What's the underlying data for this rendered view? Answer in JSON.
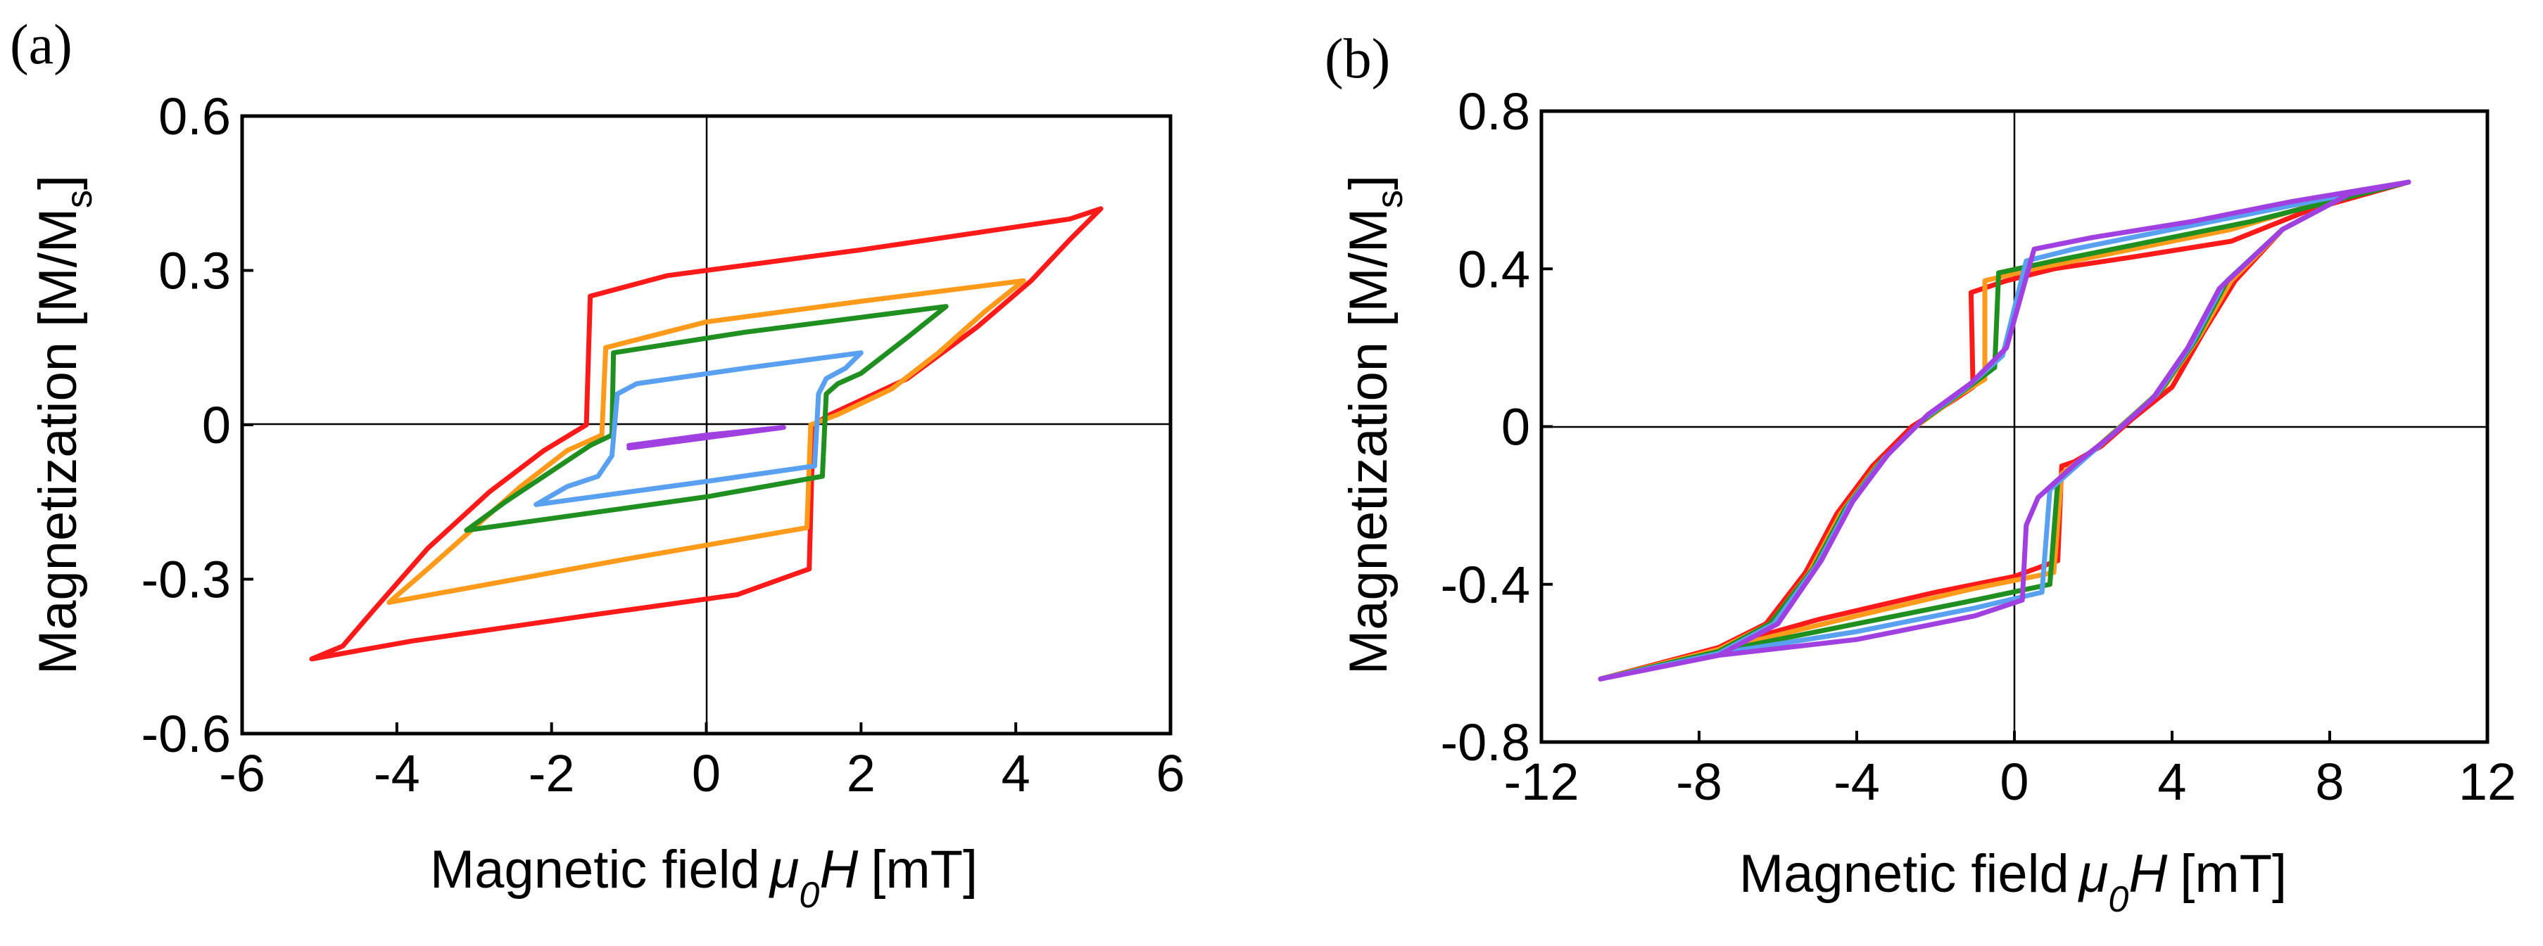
{
  "chart_data": [
    {
      "type": "line",
      "panel": "(a)",
      "xlabel": "Magnetic field",
      "xlabel_symbol": "μ",
      "xlabel_sub": "0",
      "xlabel_var": "H",
      "xlabel_unit": "[mT]",
      "ylabel": "Magnetization [M/M",
      "ylabel_sub": "s",
      "ylabel_close": "]",
      "xlim": [
        -6,
        6
      ],
      "ylim": [
        -0.6,
        0.6
      ],
      "xticks": [
        "-6",
        "-4",
        "-2",
        "0",
        "2",
        "4",
        "6"
      ],
      "yticks": [
        "0.6",
        "0.3",
        "0",
        "-0.3",
        "-0.6"
      ],
      "series": [
        {
          "color": "#ff1a1a",
          "points": [
            [
              -5.1,
              -0.455
            ],
            [
              -4.7,
              -0.43
            ],
            [
              -4.3,
              -0.36
            ],
            [
              -3.6,
              -0.24
            ],
            [
              -2.8,
              -0.13
            ],
            [
              -2.1,
              -0.05
            ],
            [
              -1.55,
              0.0
            ],
            [
              -1.5,
              0.25
            ],
            [
              -0.5,
              0.29
            ],
            [
              2.0,
              0.34
            ],
            [
              4.7,
              0.4
            ],
            [
              5.1,
              0.42
            ],
            [
              4.7,
              0.36
            ],
            [
              4.2,
              0.28
            ],
            [
              3.5,
              0.19
            ],
            [
              2.6,
              0.09
            ],
            [
              1.6,
              0.02
            ],
            [
              1.38,
              0.0
            ],
            [
              1.33,
              -0.28
            ],
            [
              0.4,
              -0.33
            ],
            [
              -1.5,
              -0.37
            ],
            [
              -3.8,
              -0.42
            ],
            [
              -5.1,
              -0.455
            ]
          ]
        },
        {
          "color": "#ff9a1a",
          "points": [
            [
              -4.1,
              -0.345
            ],
            [
              -3.6,
              -0.28
            ],
            [
              -3.0,
              -0.2
            ],
            [
              -2.4,
              -0.12
            ],
            [
              -1.8,
              -0.05
            ],
            [
              -1.35,
              -0.02
            ],
            [
              -1.3,
              0.15
            ],
            [
              0.0,
              0.2
            ],
            [
              2.0,
              0.24
            ],
            [
              4.1,
              0.28
            ],
            [
              3.6,
              0.22
            ],
            [
              3.0,
              0.14
            ],
            [
              2.4,
              0.07
            ],
            [
              1.7,
              0.02
            ],
            [
              1.35,
              0.0
            ],
            [
              1.3,
              -0.2
            ],
            [
              -1.0,
              -0.26
            ],
            [
              -4.1,
              -0.345
            ]
          ]
        },
        {
          "color": "#1f8f1f",
          "points": [
            [
              -3.1,
              -0.205
            ],
            [
              -2.6,
              -0.15
            ],
            [
              -2.0,
              -0.09
            ],
            [
              -1.5,
              -0.04
            ],
            [
              -1.22,
              -0.02
            ],
            [
              -1.2,
              0.14
            ],
            [
              0.5,
              0.18
            ],
            [
              3.1,
              0.23
            ],
            [
              2.6,
              0.17
            ],
            [
              2.0,
              0.1
            ],
            [
              1.7,
              0.08
            ],
            [
              1.55,
              0.06
            ],
            [
              1.5,
              -0.1
            ],
            [
              0.0,
              -0.14
            ],
            [
              -3.1,
              -0.205
            ]
          ]
        },
        {
          "color": "#5aa0f0",
          "points": [
            [
              -2.2,
              -0.155
            ],
            [
              -1.8,
              -0.12
            ],
            [
              -1.4,
              -0.1
            ],
            [
              -1.22,
              -0.06
            ],
            [
              -1.15,
              0.06
            ],
            [
              -0.9,
              0.08
            ],
            [
              0.5,
              0.11
            ],
            [
              2.0,
              0.14
            ],
            [
              1.8,
              0.11
            ],
            [
              1.55,
              0.09
            ],
            [
              1.45,
              0.06
            ],
            [
              1.4,
              -0.08
            ],
            [
              0.0,
              -0.11
            ],
            [
              -2.2,
              -0.155
            ]
          ]
        },
        {
          "color": "#a040e0",
          "points": [
            [
              -1.0,
              -0.045
            ],
            [
              0.0,
              -0.025
            ],
            [
              1.0,
              -0.005
            ],
            [
              0.0,
              -0.02
            ],
            [
              -1.0,
              -0.04
            ]
          ]
        }
      ]
    },
    {
      "type": "line",
      "panel": "(b)",
      "xlabel": "Magnetic field",
      "xlabel_symbol": "μ",
      "xlabel_sub": "0",
      "xlabel_var": "H",
      "xlabel_unit": "[mT]",
      "ylabel": "Magnetization [M/M",
      "ylabel_sub": "s",
      "ylabel_close": "]",
      "xlim": [
        -12,
        12
      ],
      "ylim": [
        -0.8,
        0.8
      ],
      "xticks": [
        "-12",
        "-8",
        "-4",
        "0",
        "4",
        "8",
        "12"
      ],
      "yticks": [
        "0.8",
        "0.4",
        "0",
        "-0.4",
        "-0.8"
      ],
      "series": [
        {
          "color": "#ff1a1a",
          "points": [
            [
              -10.5,
              -0.64
            ],
            [
              -7.5,
              -0.56
            ],
            [
              -6.3,
              -0.5
            ],
            [
              -5.3,
              -0.37
            ],
            [
              -4.5,
              -0.22
            ],
            [
              -3.6,
              -0.1
            ],
            [
              -2.6,
              0.0
            ],
            [
              -1.5,
              0.07
            ],
            [
              -1.05,
              0.1
            ],
            [
              -1.1,
              0.34
            ],
            [
              -0.2,
              0.37
            ],
            [
              1.0,
              0.4
            ],
            [
              3.0,
              0.43
            ],
            [
              5.5,
              0.47
            ],
            [
              7.5,
              0.55
            ],
            [
              10.0,
              0.62
            ],
            [
              8.5,
              0.59
            ],
            [
              6.8,
              0.5
            ],
            [
              5.6,
              0.37
            ],
            [
              4.8,
              0.24
            ],
            [
              4.0,
              0.1
            ],
            [
              3.0,
              0.02
            ],
            [
              2.2,
              -0.05
            ],
            [
              1.5,
              -0.09
            ],
            [
              1.2,
              -0.1
            ],
            [
              1.1,
              -0.34
            ],
            [
              0.0,
              -0.38
            ],
            [
              -2.0,
              -0.42
            ],
            [
              -5.0,
              -0.49
            ],
            [
              -7.5,
              -0.56
            ],
            [
              -10.5,
              -0.64
            ]
          ]
        },
        {
          "color": "#ff9a1a",
          "points": [
            [
              -10.5,
              -0.64
            ],
            [
              -7.5,
              -0.565
            ],
            [
              -6.2,
              -0.5
            ],
            [
              -5.2,
              -0.37
            ],
            [
              -4.4,
              -0.22
            ],
            [
              -3.5,
              -0.1
            ],
            [
              -2.5,
              0.0
            ],
            [
              -1.4,
              0.08
            ],
            [
              -0.75,
              0.12
            ],
            [
              -0.75,
              0.37
            ],
            [
              0.5,
              0.4
            ],
            [
              3.0,
              0.45
            ],
            [
              5.5,
              0.5
            ],
            [
              7.5,
              0.56
            ],
            [
              10.0,
              0.62
            ],
            [
              8.5,
              0.59
            ],
            [
              6.8,
              0.5
            ],
            [
              5.5,
              0.37
            ],
            [
              4.7,
              0.23
            ],
            [
              3.8,
              0.1
            ],
            [
              2.8,
              0.01
            ],
            [
              2.0,
              -0.06
            ],
            [
              1.2,
              -0.12
            ],
            [
              1.0,
              -0.37
            ],
            [
              -1.0,
              -0.41
            ],
            [
              -4.0,
              -0.48
            ],
            [
              -7.5,
              -0.565
            ],
            [
              -10.5,
              -0.64
            ]
          ]
        },
        {
          "color": "#1f8f1f",
          "points": [
            [
              -10.5,
              -0.64
            ],
            [
              -7.5,
              -0.57
            ],
            [
              -6.2,
              -0.5
            ],
            [
              -5.1,
              -0.36
            ],
            [
              -4.3,
              -0.21
            ],
            [
              -3.4,
              -0.09
            ],
            [
              -2.4,
              0.01
            ],
            [
              -1.3,
              0.09
            ],
            [
              -0.5,
              0.15
            ],
            [
              -0.4,
              0.39
            ],
            [
              1.0,
              0.42
            ],
            [
              3.5,
              0.47
            ],
            [
              6.0,
              0.52
            ],
            [
              8.0,
              0.57
            ],
            [
              10.0,
              0.62
            ],
            [
              8.5,
              0.59
            ],
            [
              6.8,
              0.5
            ],
            [
              5.4,
              0.37
            ],
            [
              4.6,
              0.22
            ],
            [
              3.7,
              0.09
            ],
            [
              2.7,
              0.0
            ],
            [
              1.9,
              -0.07
            ],
            [
              1.1,
              -0.14
            ],
            [
              0.9,
              -0.4
            ],
            [
              -1.0,
              -0.44
            ],
            [
              -4.0,
              -0.5
            ],
            [
              -7.5,
              -0.57
            ],
            [
              -10.5,
              -0.64
            ]
          ]
        },
        {
          "color": "#5aa0f0",
          "points": [
            [
              -10.5,
              -0.64
            ],
            [
              -7.5,
              -0.575
            ],
            [
              -6.1,
              -0.5
            ],
            [
              -5.0,
              -0.35
            ],
            [
              -4.2,
              -0.2
            ],
            [
              -3.3,
              -0.08
            ],
            [
              -2.3,
              0.02
            ],
            [
              -1.2,
              0.1
            ],
            [
              -0.3,
              0.18
            ],
            [
              0.3,
              0.42
            ],
            [
              1.5,
              0.45
            ],
            [
              4.0,
              0.5
            ],
            [
              6.5,
              0.55
            ],
            [
              8.5,
              0.59
            ],
            [
              10.0,
              0.62
            ],
            [
              8.5,
              0.59
            ],
            [
              6.8,
              0.5
            ],
            [
              5.3,
              0.36
            ],
            [
              4.5,
              0.21
            ],
            [
              3.6,
              0.08
            ],
            [
              2.6,
              -0.01
            ],
            [
              1.8,
              -0.08
            ],
            [
              0.9,
              -0.16
            ],
            [
              0.7,
              -0.42
            ],
            [
              -1.0,
              -0.46
            ],
            [
              -4.0,
              -0.52
            ],
            [
              -7.5,
              -0.575
            ],
            [
              -10.5,
              -0.64
            ]
          ]
        },
        {
          "color": "#a040e0",
          "points": [
            [
              -10.5,
              -0.64
            ],
            [
              -7.5,
              -0.58
            ],
            [
              -6.0,
              -0.5
            ],
            [
              -4.9,
              -0.34
            ],
            [
              -4.1,
              -0.19
            ],
            [
              -3.2,
              -0.07
            ],
            [
              -2.2,
              0.03
            ],
            [
              -1.1,
              0.11
            ],
            [
              -0.2,
              0.2
            ],
            [
              0.5,
              0.45
            ],
            [
              2.0,
              0.48
            ],
            [
              4.5,
              0.52
            ],
            [
              7.0,
              0.57
            ],
            [
              8.8,
              0.6
            ],
            [
              10.0,
              0.62
            ],
            [
              8.5,
              0.59
            ],
            [
              6.8,
              0.5
            ],
            [
              5.2,
              0.35
            ],
            [
              4.4,
              0.2
            ],
            [
              3.5,
              0.07
            ],
            [
              2.5,
              -0.02
            ],
            [
              1.6,
              -0.09
            ],
            [
              0.6,
              -0.18
            ],
            [
              0.3,
              -0.25
            ],
            [
              0.2,
              -0.44
            ],
            [
              -1.0,
              -0.48
            ],
            [
              -4.0,
              -0.54
            ],
            [
              -7.5,
              -0.58
            ],
            [
              -10.5,
              -0.64
            ]
          ]
        }
      ]
    }
  ]
}
